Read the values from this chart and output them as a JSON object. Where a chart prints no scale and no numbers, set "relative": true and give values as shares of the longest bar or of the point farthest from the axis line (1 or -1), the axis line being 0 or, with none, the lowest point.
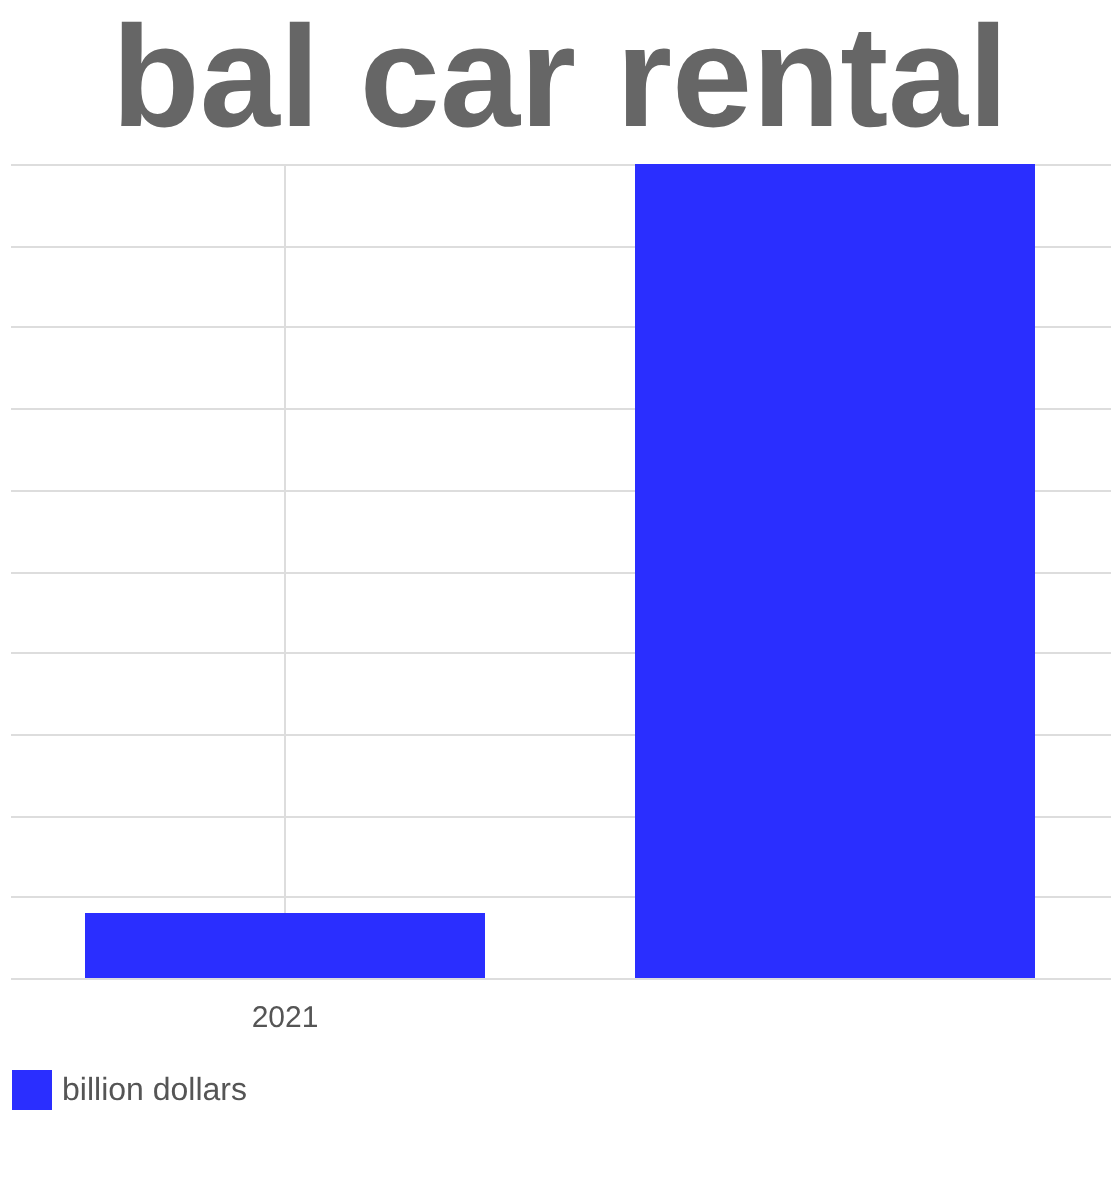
{
  "chart_data": {
    "type": "bar",
    "title": "bal car rental",
    "categories": [
      "2021",
      null
    ],
    "relative": true,
    "series": [
      {
        "name": "billion dollars",
        "color": "#2a2eff",
        "values": [
          0.08,
          1
        ]
      }
    ],
    "grid": true,
    "legend": "bottom"
  }
}
